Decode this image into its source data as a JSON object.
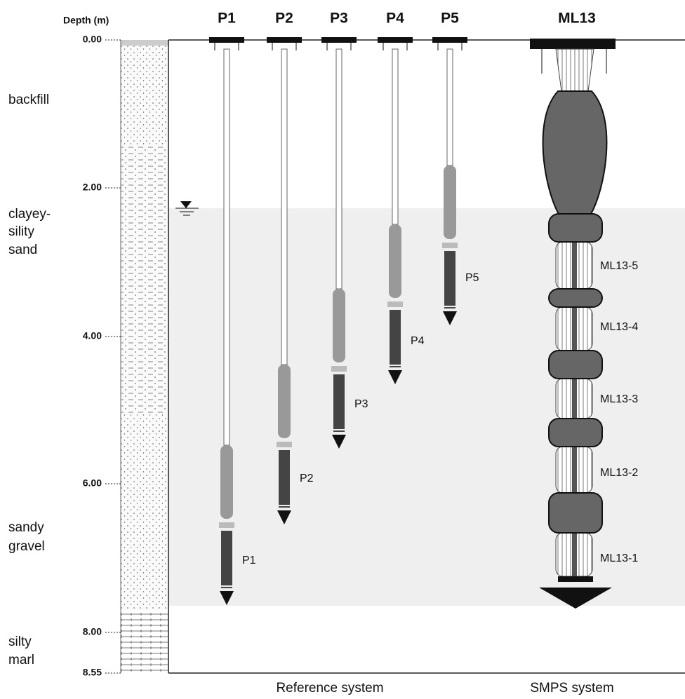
{
  "axis": {
    "title": "Depth (m)",
    "ticks": [
      "0.00",
      "2.00",
      "4.00",
      "6.00",
      "8.00",
      "8.55"
    ]
  },
  "layers": [
    [
      "backfill"
    ],
    [
      "clayey-",
      "sility",
      "sand"
    ],
    [
      "sandy",
      "gravel"
    ],
    [
      "silty",
      "marl"
    ]
  ],
  "piezometers": {
    "headers": [
      "P1",
      "P2",
      "P3",
      "P4",
      "P5"
    ],
    "labels": [
      "P1",
      "P2",
      "P3",
      "P4",
      "P5"
    ]
  },
  "smps": {
    "header": "ML13",
    "ports": [
      "ML13-5",
      "ML13-4",
      "ML13-3",
      "ML13-2",
      "ML13-1"
    ]
  },
  "footer": [
    "Reference system",
    "SMPS system"
  ]
}
